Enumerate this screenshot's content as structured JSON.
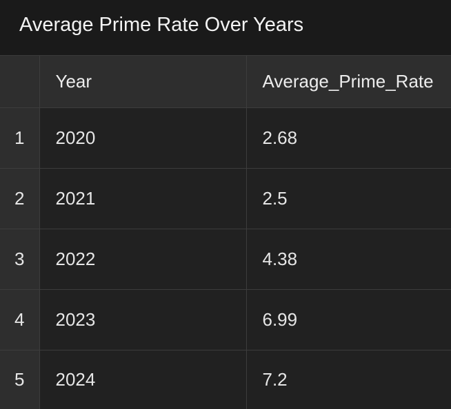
{
  "chart_data": {
    "type": "table",
    "title": "Average Prime Rate Over Years",
    "columns": [
      "Year",
      "Average_Prime_Rate"
    ],
    "rows": [
      {
        "index": "1",
        "Year": "2020",
        "Average_Prime_Rate": "2.68"
      },
      {
        "index": "2",
        "Year": "2021",
        "Average_Prime_Rate": "2.5"
      },
      {
        "index": "3",
        "Year": "2022",
        "Average_Prime_Rate": "4.38"
      },
      {
        "index": "4",
        "Year": "2023",
        "Average_Prime_Rate": "6.99"
      },
      {
        "index": "5",
        "Year": "2024",
        "Average_Prime_Rate": "7.2"
      }
    ]
  }
}
